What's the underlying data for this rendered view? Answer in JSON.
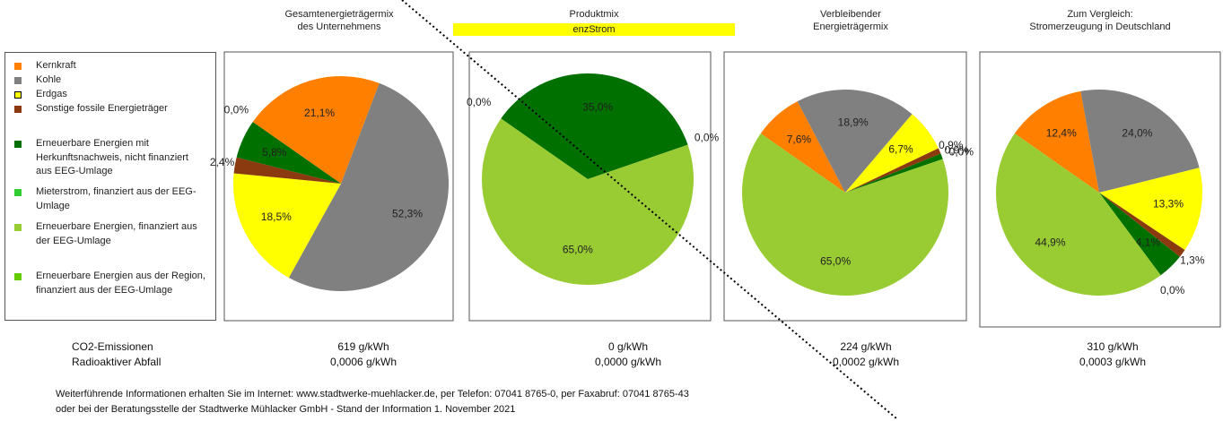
{
  "legend": {
    "categories": [
      "Kernkraft",
      "Kohle",
      "Erdgas",
      "Sonstige fossile Energieträger",
      "Erneuerbare Energien mit Herkunftsnachweis, nicht finanziert aus EEG-Umlage",
      "Mieterstrom, finanziert aus der EEG-Umlage",
      "Erneuerbare Energien, finanziert aus der EEG-Umlage",
      "Erneuerbare Energien aus der Region, finanziert aus der EEG-Umlage"
    ],
    "colors": [
      "#ff8000",
      "#808080",
      "#ffff00",
      "#8b3a0f",
      "#007000",
      "#33cc33",
      "#99cc33",
      "#66cc00"
    ]
  },
  "chart_data": [
    {
      "type": "pie",
      "title": [
        "Gesamtenergieträgermix",
        "des Unternehmens"
      ],
      "values": [
        21.1,
        52.3,
        18.5,
        2.4,
        5.8,
        0,
        0,
        0
      ],
      "value_labels": [
        "21,1%",
        "52,3%",
        "18,5%",
        "2,4%",
        "5,8%",
        "0,0%",
        null,
        null
      ]
    },
    {
      "type": "pie",
      "title": [
        "Produktmix"
      ],
      "subtitle": "enzStrom",
      "values": [
        0,
        0,
        0,
        0,
        35.0,
        0,
        65.0,
        0
      ],
      "value_labels": [
        null,
        null,
        null,
        null,
        "35,0%",
        "0,0%",
        "65,0%",
        "0,0%"
      ]
    },
    {
      "type": "pie",
      "title": [
        "Verbleibender",
        "Energieträgermix"
      ],
      "values": [
        7.6,
        18.9,
        6.7,
        0.9,
        0.9,
        0,
        65.0,
        0
      ],
      "value_labels": [
        "7,6%",
        "18,9%",
        "6,7%",
        "0,9%",
        "0,9%",
        "0,0%",
        "65,0%",
        null
      ]
    },
    {
      "type": "pie",
      "title": [
        "Zum Vergleich:",
        "Stromerzeugung in Deutschland"
      ],
      "values": [
        12.4,
        24.0,
        13.3,
        1.3,
        4.1,
        0,
        44.9,
        0
      ],
      "value_labels": [
        "12,4%",
        "24,0%",
        "13,3%",
        "1,3%",
        "4,1%",
        "0,0%",
        "44,9%",
        null
      ]
    }
  ],
  "emissions": {
    "labels": [
      "CO2-Emissionen",
      "Radioaktiver Abfall"
    ],
    "values": [
      [
        "619 g/kWh",
        "0 g/kWh",
        "224 g/kWh",
        "310 g/kWh"
      ],
      [
        "0,0006 g/kWh",
        "0,0000 g/kWh",
        "0,0002 g/kWh",
        "0,0003 g/kWh"
      ]
    ]
  },
  "footer": [
    "Weiterführende Informationen erhalten Sie im Internet: www.stadtwerke-muehlacker.de, per Telefon: 07041 8765-0, per Faxabruf: 07041 8765-43",
    "oder bei der Beratungsstelle der Stadtwerke Mühlacker GmbH - Stand der Information 1. November 2021"
  ]
}
